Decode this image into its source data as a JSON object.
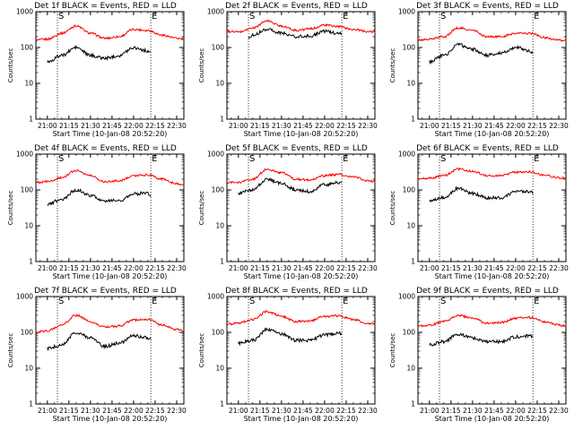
{
  "figure": {
    "x_tick_labels": [
      "21:00",
      "21:15",
      "21:30",
      "21:45",
      "22:00",
      "22:15",
      "22:30"
    ],
    "y_tick_labels": [
      "1",
      "10",
      "100",
      "1000"
    ],
    "marker_start": "S",
    "marker_end": "E"
  },
  "colors": {
    "events": "#000000",
    "lld": "#ff0000",
    "axes": "#000000",
    "background": "#ffffff"
  },
  "chart_data": [
    {
      "type": "line",
      "title": "Det 1f BLACK = Events, RED = LLD",
      "xlabel": "Start Time (10-Jan-08 20:52:20)",
      "ylabel": "Counts/sec",
      "yscale": "log",
      "ylim": [
        1,
        1000
      ],
      "xlim": [
        "20:52",
        "22:35"
      ],
      "grid": false,
      "markers": [
        "21:07",
        "22:12"
      ],
      "series": [
        {
          "color": "#ff0000",
          "x": [
            "20:52",
            "21:00",
            "21:10",
            "21:20",
            "21:30",
            "21:40",
            "21:50",
            "22:00",
            "22:10",
            "22:20",
            "22:30",
            "22:35"
          ],
          "values": [
            160,
            170,
            250,
            400,
            250,
            180,
            200,
            320,
            300,
            220,
            180,
            170
          ]
        },
        {
          "color": "#000000",
          "x": [
            "21:00",
            "21:10",
            "21:20",
            "21:30",
            "21:40",
            "21:50",
            "22:00",
            "22:10",
            "22:12"
          ],
          "values": [
            40,
            60,
            100,
            60,
            50,
            60,
            100,
            80,
            70
          ]
        }
      ]
    },
    {
      "type": "line",
      "title": "Det 2f BLACK = Events, RED = LLD",
      "xlabel": "Start Time (10-Jan-08 20:52:20)",
      "ylabel": "Counts/sec",
      "yscale": "log",
      "ylim": [
        1,
        1000
      ],
      "xlim": [
        "20:52",
        "22:35"
      ],
      "grid": false,
      "markers": [
        "21:07",
        "22:12"
      ],
      "series": [
        {
          "color": "#ff0000",
          "x": [
            "20:52",
            "21:00",
            "21:10",
            "21:20",
            "21:30",
            "21:40",
            "21:50",
            "22:00",
            "22:10",
            "22:20",
            "22:30",
            "22:35"
          ],
          "values": [
            280,
            270,
            350,
            550,
            400,
            300,
            330,
            420,
            380,
            320,
            280,
            270
          ]
        },
        {
          "color": "#000000",
          "x": [
            "21:07",
            "21:10",
            "21:20",
            "21:30",
            "21:40",
            "21:50",
            "22:00",
            "22:10",
            "22:12"
          ],
          "values": [
            200,
            220,
            330,
            250,
            200,
            210,
            280,
            250,
            240
          ]
        }
      ]
    },
    {
      "type": "line",
      "title": "Det 3f BLACK = Events, RED = LLD",
      "xlabel": "Start Time (10-Jan-08 20:52:20)",
      "ylabel": "Counts/sec",
      "yscale": "log",
      "ylim": [
        1,
        1000
      ],
      "xlim": [
        "20:52",
        "22:35"
      ],
      "grid": false,
      "markers": [
        "21:07",
        "22:12"
      ],
      "series": [
        {
          "color": "#ff0000",
          "x": [
            "20:52",
            "21:00",
            "21:10",
            "21:20",
            "21:30",
            "21:40",
            "21:50",
            "22:00",
            "22:10",
            "22:20",
            "22:30",
            "22:35"
          ],
          "values": [
            160,
            170,
            200,
            350,
            300,
            200,
            200,
            250,
            250,
            190,
            160,
            150
          ]
        },
        {
          "color": "#000000",
          "x": [
            "21:00",
            "21:10",
            "21:20",
            "21:30",
            "21:40",
            "21:50",
            "22:00",
            "22:10",
            "22:12"
          ],
          "values": [
            40,
            60,
            120,
            90,
            60,
            70,
            100,
            80,
            70
          ]
        }
      ]
    },
    {
      "type": "line",
      "title": "Det 4f BLACK = Events, RED = LLD",
      "xlabel": "Start Time (10-Jan-08 20:52:20)",
      "ylabel": "Counts/sec",
      "yscale": "log",
      "ylim": [
        1,
        1000
      ],
      "xlim": [
        "20:52",
        "22:35"
      ],
      "grid": false,
      "markers": [
        "21:07",
        "22:12"
      ],
      "series": [
        {
          "color": "#ff0000",
          "x": [
            "20:52",
            "21:00",
            "21:10",
            "21:20",
            "21:30",
            "21:40",
            "21:50",
            "22:00",
            "22:10",
            "22:20",
            "22:30",
            "22:35"
          ],
          "values": [
            160,
            170,
            220,
            350,
            250,
            170,
            180,
            250,
            260,
            200,
            150,
            140
          ]
        },
        {
          "color": "#000000",
          "x": [
            "21:00",
            "21:10",
            "21:20",
            "21:30",
            "21:40",
            "21:50",
            "22:00",
            "22:10",
            "22:12"
          ],
          "values": [
            40,
            55,
            100,
            70,
            50,
            50,
            80,
            80,
            70
          ]
        }
      ]
    },
    {
      "type": "line",
      "title": "Det 5f BLACK = Events, RED = LLD",
      "xlabel": "Start Time (10-Jan-08 20:52:20)",
      "ylabel": "Counts/sec",
      "yscale": "log",
      "ylim": [
        1,
        1000
      ],
      "xlim": [
        "20:52",
        "22:35"
      ],
      "grid": false,
      "markers": [
        "21:07",
        "22:12"
      ],
      "series": [
        {
          "color": "#ff0000",
          "x": [
            "20:52",
            "21:00",
            "21:10",
            "21:20",
            "21:30",
            "21:40",
            "21:50",
            "22:00",
            "22:10",
            "22:20",
            "22:30",
            "22:35"
          ],
          "values": [
            160,
            160,
            200,
            380,
            300,
            200,
            190,
            250,
            270,
            230,
            180,
            170
          ]
        },
        {
          "color": "#000000",
          "x": [
            "21:00",
            "21:10",
            "21:20",
            "21:30",
            "21:40",
            "21:50",
            "22:00",
            "22:10",
            "22:12"
          ],
          "values": [
            80,
            100,
            200,
            150,
            100,
            90,
            140,
            160,
            150
          ]
        }
      ]
    },
    {
      "type": "line",
      "title": "Det 6f BLACK = Events, RED = LLD",
      "xlabel": "Start Time (10-Jan-08 20:52:20)",
      "ylabel": "Counts/sec",
      "yscale": "log",
      "ylim": [
        1,
        1000
      ],
      "xlim": [
        "20:52",
        "22:35"
      ],
      "grid": false,
      "markers": [
        "21:07",
        "22:12"
      ],
      "series": [
        {
          "color": "#ff0000",
          "x": [
            "20:52",
            "21:00",
            "21:10",
            "21:20",
            "21:30",
            "21:40",
            "21:50",
            "22:00",
            "22:10",
            "22:20",
            "22:30",
            "22:35"
          ],
          "values": [
            200,
            210,
            250,
            380,
            330,
            250,
            250,
            310,
            320,
            260,
            220,
            210
          ]
        },
        {
          "color": "#000000",
          "x": [
            "21:00",
            "21:10",
            "21:20",
            "21:30",
            "21:40",
            "21:50",
            "22:00",
            "22:10",
            "22:12"
          ],
          "values": [
            50,
            60,
            110,
            80,
            60,
            60,
            90,
            90,
            80
          ]
        }
      ]
    },
    {
      "type": "line",
      "title": "Det 7f BLACK = Events, RED = LLD",
      "xlabel": "Start Time (10-Jan-08 20:52:20)",
      "ylabel": "Counts/sec",
      "yscale": "log",
      "ylim": [
        1,
        1000
      ],
      "xlim": [
        "20:52",
        "22:35"
      ],
      "grid": false,
      "markers": [
        "21:07",
        "22:12"
      ],
      "series": [
        {
          "color": "#ff0000",
          "x": [
            "20:52",
            "21:00",
            "21:10",
            "21:20",
            "21:30",
            "21:40",
            "21:50",
            "22:00",
            "22:10",
            "22:20",
            "22:30",
            "22:35"
          ],
          "values": [
            100,
            110,
            160,
            300,
            200,
            140,
            150,
            220,
            230,
            160,
            120,
            110
          ]
        },
        {
          "color": "#000000",
          "x": [
            "21:00",
            "21:10",
            "21:20",
            "21:30",
            "21:40",
            "21:50",
            "22:00",
            "22:10",
            "22:12"
          ],
          "values": [
            35,
            45,
            100,
            70,
            40,
            50,
            80,
            70,
            65
          ]
        }
      ]
    },
    {
      "type": "line",
      "title": "Det 8f BLACK = Events, RED = LLD",
      "xlabel": "Start Time (10-Jan-08 20:52:20)",
      "ylabel": "Counts/sec",
      "yscale": "log",
      "ylim": [
        1,
        1000
      ],
      "xlim": [
        "20:52",
        "22:35"
      ],
      "grid": false,
      "markers": [
        "21:07",
        "22:12"
      ],
      "series": [
        {
          "color": "#ff0000",
          "x": [
            "20:52",
            "21:00",
            "21:10",
            "21:20",
            "21:30",
            "21:40",
            "21:50",
            "22:00",
            "22:10",
            "22:20",
            "22:30",
            "22:35"
          ],
          "values": [
            170,
            180,
            230,
            380,
            280,
            200,
            210,
            280,
            290,
            230,
            180,
            170
          ]
        },
        {
          "color": "#000000",
          "x": [
            "21:00",
            "21:10",
            "21:20",
            "21:30",
            "21:40",
            "21:50",
            "22:00",
            "22:10",
            "22:12"
          ],
          "values": [
            50,
            60,
            120,
            90,
            60,
            60,
            85,
            95,
            90
          ]
        }
      ]
    },
    {
      "type": "line",
      "title": "Det 9f BLACK = Events, RED = LLD",
      "xlabel": "Start Time (10-Jan-08 20:52:20)",
      "ylabel": "Counts/sec",
      "yscale": "log",
      "ylim": [
        1,
        1000
      ],
      "xlim": [
        "20:52",
        "22:35"
      ],
      "grid": false,
      "markers": [
        "21:07",
        "22:12"
      ],
      "series": [
        {
          "color": "#ff0000",
          "x": [
            "20:52",
            "21:00",
            "21:10",
            "21:20",
            "21:30",
            "21:40",
            "21:50",
            "22:00",
            "22:10",
            "22:20",
            "22:30",
            "22:35"
          ],
          "values": [
            150,
            160,
            200,
            300,
            250,
            180,
            190,
            250,
            260,
            200,
            160,
            150
          ]
        },
        {
          "color": "#000000",
          "x": [
            "21:00",
            "21:10",
            "21:20",
            "21:30",
            "21:40",
            "21:50",
            "22:00",
            "22:10",
            "22:12"
          ],
          "values": [
            45,
            55,
            90,
            70,
            55,
            55,
            75,
            80,
            75
          ]
        }
      ]
    }
  ]
}
